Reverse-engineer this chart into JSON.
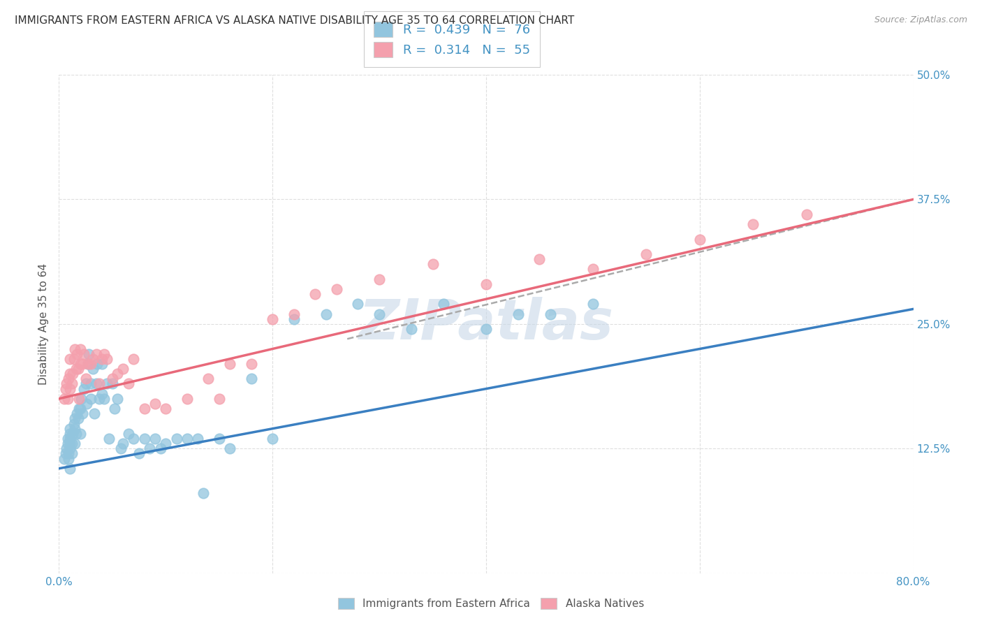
{
  "title": "IMMIGRANTS FROM EASTERN AFRICA VS ALASKA NATIVE DISABILITY AGE 35 TO 64 CORRELATION CHART",
  "source": "Source: ZipAtlas.com",
  "ylabel": "Disability Age 35 to 64",
  "xlim": [
    0.0,
    0.8
  ],
  "ylim": [
    0.0,
    0.5
  ],
  "xticks": [
    0.0,
    0.2,
    0.4,
    0.6,
    0.8
  ],
  "xticklabels": [
    "0.0%",
    "",
    "",
    "",
    "80.0%"
  ],
  "yticks": [
    0.0,
    0.125,
    0.25,
    0.375,
    0.5
  ],
  "yticklabels": [
    "",
    "12.5%",
    "25.0%",
    "37.5%",
    "50.0%"
  ],
  "blue_color": "#92C5DE",
  "pink_color": "#F4A0AD",
  "blue_line_color": "#3A7FC1",
  "pink_line_color": "#E8697A",
  "dashed_line_color": "#AAAAAA",
  "watermark": "ZIPatlas",
  "watermark_color": "#C8D8E8",
  "legend_R1": "0.439",
  "legend_N1": "76",
  "legend_R2": "0.314",
  "legend_N2": "55",
  "legend_label1": "Immigrants from Eastern Africa",
  "legend_label2": "Alaska Natives",
  "blue_scatter_x": [
    0.005,
    0.006,
    0.007,
    0.008,
    0.008,
    0.009,
    0.009,
    0.01,
    0.01,
    0.01,
    0.01,
    0.01,
    0.01,
    0.012,
    0.012,
    0.013,
    0.014,
    0.015,
    0.015,
    0.015,
    0.016,
    0.017,
    0.018,
    0.019,
    0.02,
    0.02,
    0.021,
    0.022,
    0.023,
    0.025,
    0.026,
    0.027,
    0.028,
    0.03,
    0.03,
    0.032,
    0.033,
    0.035,
    0.036,
    0.038,
    0.04,
    0.04,
    0.042,
    0.045,
    0.047,
    0.05,
    0.052,
    0.055,
    0.058,
    0.06,
    0.065,
    0.07,
    0.075,
    0.08,
    0.085,
    0.09,
    0.095,
    0.1,
    0.11,
    0.12,
    0.13,
    0.135,
    0.15,
    0.16,
    0.18,
    0.2,
    0.22,
    0.25,
    0.28,
    0.3,
    0.33,
    0.36,
    0.4,
    0.43,
    0.46,
    0.5
  ],
  "blue_scatter_y": [
    0.115,
    0.12,
    0.125,
    0.13,
    0.135,
    0.115,
    0.12,
    0.125,
    0.13,
    0.135,
    0.14,
    0.145,
    0.105,
    0.12,
    0.13,
    0.14,
    0.15,
    0.13,
    0.145,
    0.155,
    0.14,
    0.16,
    0.155,
    0.165,
    0.14,
    0.165,
    0.175,
    0.16,
    0.185,
    0.19,
    0.17,
    0.21,
    0.22,
    0.175,
    0.19,
    0.205,
    0.16,
    0.19,
    0.21,
    0.175,
    0.18,
    0.21,
    0.175,
    0.19,
    0.135,
    0.19,
    0.165,
    0.175,
    0.125,
    0.13,
    0.14,
    0.135,
    0.12,
    0.135,
    0.125,
    0.135,
    0.125,
    0.13,
    0.135,
    0.135,
    0.135,
    0.08,
    0.135,
    0.125,
    0.195,
    0.135,
    0.255,
    0.26,
    0.27,
    0.26,
    0.245,
    0.27,
    0.245,
    0.26,
    0.26,
    0.27
  ],
  "pink_scatter_x": [
    0.005,
    0.006,
    0.007,
    0.008,
    0.009,
    0.01,
    0.01,
    0.01,
    0.012,
    0.013,
    0.014,
    0.015,
    0.016,
    0.017,
    0.018,
    0.019,
    0.02,
    0.02,
    0.022,
    0.023,
    0.025,
    0.027,
    0.03,
    0.032,
    0.035,
    0.038,
    0.04,
    0.042,
    0.045,
    0.05,
    0.055,
    0.06,
    0.065,
    0.07,
    0.08,
    0.09,
    0.1,
    0.12,
    0.14,
    0.15,
    0.16,
    0.18,
    0.2,
    0.22,
    0.24,
    0.26,
    0.3,
    0.35,
    0.4,
    0.45,
    0.5,
    0.55,
    0.6,
    0.65,
    0.7
  ],
  "pink_scatter_y": [
    0.175,
    0.185,
    0.19,
    0.175,
    0.195,
    0.185,
    0.2,
    0.215,
    0.19,
    0.2,
    0.215,
    0.225,
    0.205,
    0.22,
    0.205,
    0.175,
    0.21,
    0.225,
    0.21,
    0.22,
    0.195,
    0.21,
    0.21,
    0.215,
    0.22,
    0.19,
    0.215,
    0.22,
    0.215,
    0.195,
    0.2,
    0.205,
    0.19,
    0.215,
    0.165,
    0.17,
    0.165,
    0.175,
    0.195,
    0.175,
    0.21,
    0.21,
    0.255,
    0.26,
    0.28,
    0.285,
    0.295,
    0.31,
    0.29,
    0.315,
    0.305,
    0.32,
    0.335,
    0.35,
    0.36
  ],
  "blue_line_x": [
    0.0,
    0.8
  ],
  "blue_line_y": [
    0.105,
    0.265
  ],
  "pink_line_x": [
    0.0,
    0.8
  ],
  "pink_line_y": [
    0.175,
    0.375
  ],
  "dashed_line_x": [
    0.27,
    0.8
  ],
  "dashed_line_y": [
    0.235,
    0.375
  ],
  "grid_color": "#DEDEDE",
  "background_color": "#FFFFFF",
  "title_fontsize": 11,
  "source_fontsize": 9,
  "axis_label_fontsize": 11,
  "tick_fontsize": 11,
  "legend_fontsize": 13
}
